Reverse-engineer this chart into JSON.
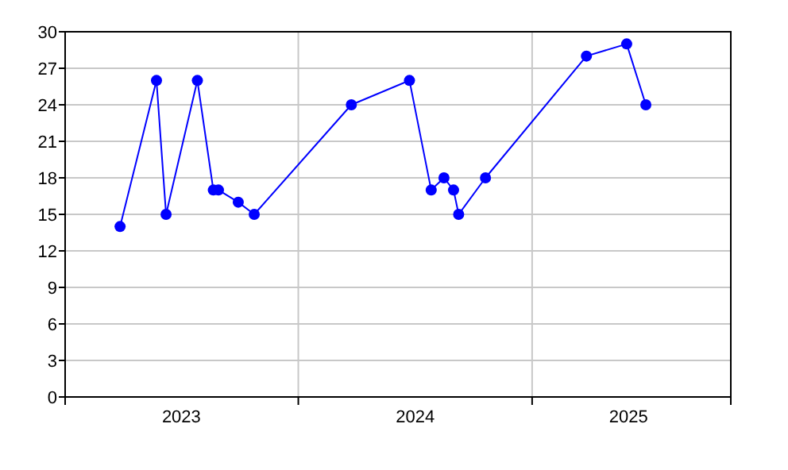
{
  "chart_data": {
    "type": "line",
    "x": [
      "2023-03-28",
      "2023-05-24",
      "2023-06-08",
      "2023-07-27",
      "2023-08-21",
      "2023-08-29",
      "2023-09-29",
      "2023-10-24",
      "2024-03-24",
      "2024-06-23",
      "2024-07-27",
      "2024-08-16",
      "2024-08-31",
      "2024-09-08",
      "2024-10-20",
      "2025-03-27",
      "2025-05-29",
      "2025-06-28"
    ],
    "series": [
      {
        "color": "#0000ff",
        "values": [
          14,
          26,
          15,
          26,
          17,
          17,
          16,
          15,
          24,
          26,
          17,
          18,
          17,
          15,
          18,
          28,
          29,
          24
        ]
      }
    ],
    "xlim": [
      "2023-01-01",
      "2025-11-08"
    ],
    "xticks": [
      {
        "value": "2023-01-01",
        "label": null
      },
      {
        "value": "2023-07-02",
        "label": "2023"
      },
      {
        "value": "2024-01-01",
        "label": null
      },
      {
        "value": "2024-07-02",
        "label": "2024"
      },
      {
        "value": "2025-01-01",
        "label": null
      },
      {
        "value": "2025-06-01",
        "label": "2025"
      },
      {
        "value": "2025-11-08",
        "label": null
      }
    ],
    "ylim": [
      0,
      30
    ],
    "yticks": [
      0,
      3,
      6,
      9,
      12,
      15,
      18,
      21,
      24,
      27,
      30
    ],
    "grid": true,
    "marker": "circle",
    "line_style": "solid"
  }
}
